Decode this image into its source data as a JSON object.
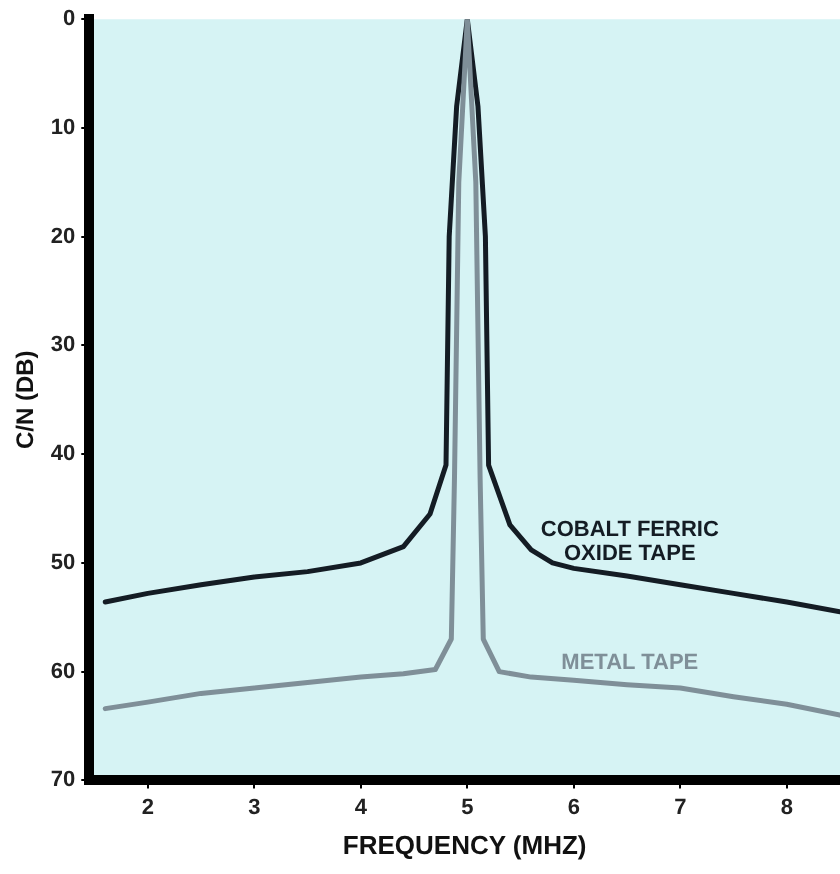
{
  "chart_data": {
    "type": "line",
    "xlabel": "FREQUENCY (MHZ)",
    "ylabel": "C/N (DB)",
    "xlim": [
      1.45,
      8.5
    ],
    "xticks": [
      2,
      3,
      4,
      5,
      6,
      7,
      8
    ],
    "ylim": [
      70,
      0
    ],
    "yticks": [
      0,
      10,
      20,
      30,
      40,
      50,
      60,
      70
    ],
    "grid": false,
    "legend": false,
    "marker": "none",
    "line_style": "solid",
    "series": [
      {
        "name": "COBALT FERRIC OXIDE TAPE",
        "color": "#141c24",
        "x": [
          1.6,
          2,
          2.5,
          3,
          3.5,
          4,
          4.4,
          4.65,
          4.8,
          4.83,
          4.9,
          5,
          5.1,
          5.17,
          5.2,
          5.4,
          5.6,
          5.8,
          6,
          6.5,
          7,
          7.5,
          8,
          8.5
        ],
        "values": [
          53.6,
          52.8,
          52,
          51.3,
          50.8,
          50,
          48.5,
          45.5,
          41,
          20,
          8,
          0,
          8,
          20,
          41,
          46.5,
          48.8,
          50,
          50.5,
          51.2,
          52,
          52.8,
          53.6,
          54.5
        ]
      },
      {
        "name": "METAL TAPE",
        "color": "#7f8f98",
        "x": [
          1.6,
          2,
          2.5,
          3,
          3.5,
          4,
          4.4,
          4.7,
          4.85,
          4.88,
          4.92,
          5,
          5.08,
          5.12,
          5.15,
          5.3,
          5.6,
          6,
          6.5,
          7,
          7.5,
          8,
          8.5
        ],
        "values": [
          63.4,
          62.8,
          62,
          61.5,
          61,
          60.5,
          60.2,
          59.8,
          57,
          42,
          15,
          0,
          15,
          42,
          57,
          60,
          60.5,
          60.8,
          61.2,
          61.5,
          62.3,
          63,
          64
        ]
      }
    ]
  }
}
